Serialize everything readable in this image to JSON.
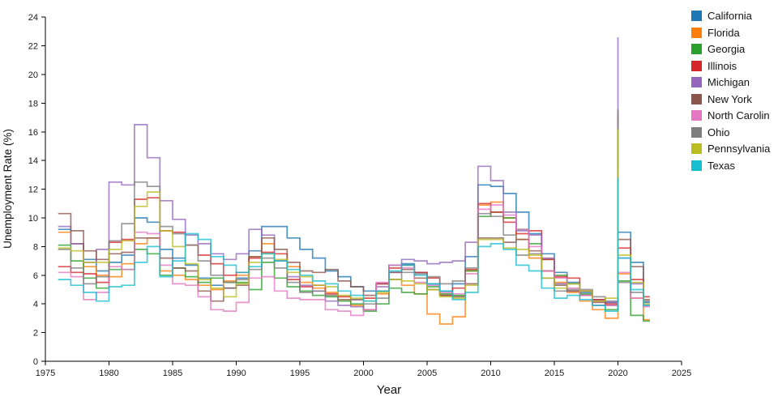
{
  "chart_data": {
    "type": "line",
    "subtype": "step-after-annual",
    "title": "",
    "xlabel": "Year",
    "ylabel": "Unemployment Rate (%)",
    "xlim": [
      1975,
      2025
    ],
    "ylim": [
      0,
      24
    ],
    "xticks": [
      1975,
      1980,
      1985,
      1990,
      1995,
      2000,
      2005,
      2010,
      2015,
      2020,
      2025
    ],
    "yticks": [
      0,
      2,
      4,
      6,
      8,
      10,
      12,
      14,
      16,
      18,
      20,
      22,
      24
    ],
    "grid": false,
    "legend_position": "right",
    "x_start_year": 1976,
    "x_end_year": 2022,
    "note_2020": "narrow intra-year spike at 2020; peak_2020 is the spike top per state",
    "series": [
      {
        "name": "California",
        "legend_label": "California",
        "color": "#1f77b4",
        "peak_2020": 16.2,
        "values": [
          9.2,
          8.2,
          7.1,
          6.3,
          6.9,
          7.4,
          10.0,
          9.7,
          7.8,
          7.2,
          6.7,
          5.8,
          5.3,
          5.1,
          5.8,
          7.7,
          9.4,
          9.4,
          8.6,
          7.8,
          7.2,
          6.3,
          5.9,
          5.2,
          4.9,
          5.4,
          6.7,
          6.8,
          6.2,
          5.4,
          4.9,
          5.4,
          7.3,
          12.3,
          12.2,
          11.7,
          10.4,
          8.9,
          7.5,
          6.2,
          5.5,
          4.8,
          4.3,
          4.1,
          9.0,
          6.9,
          4.1
        ]
      },
      {
        "name": "Florida",
        "legend_label": "Florida",
        "color": "#ff7f0e",
        "peak_2020": 14.2,
        "values": [
          9.0,
          8.2,
          6.6,
          6.0,
          5.9,
          6.8,
          8.2,
          8.6,
          6.3,
          6.0,
          5.7,
          5.3,
          5.0,
          5.6,
          6.0,
          7.3,
          8.2,
          7.0,
          6.6,
          5.5,
          5.1,
          4.8,
          4.3,
          3.9,
          3.6,
          4.7,
          5.7,
          5.3,
          4.7,
          3.3,
          2.6,
          3.1,
          6.3,
          10.9,
          11.1,
          10.0,
          8.5,
          7.2,
          6.3,
          5.5,
          4.8,
          4.2,
          3.6,
          3.0,
          6.1,
          4.4,
          2.9
        ]
      },
      {
        "name": "Georgia",
        "legend_label": "Georgia",
        "color": "#2ca02c",
        "peak_2020": 12.6,
        "values": [
          8.1,
          7.0,
          5.8,
          5.1,
          6.4,
          6.4,
          7.8,
          7.5,
          6.0,
          6.5,
          5.9,
          5.5,
          5.8,
          5.5,
          5.5,
          5.0,
          6.9,
          5.8,
          5.2,
          4.9,
          4.6,
          4.5,
          4.2,
          4.0,
          3.5,
          4.0,
          5.1,
          4.8,
          4.7,
          5.2,
          4.7,
          4.6,
          6.3,
          10.1,
          10.4,
          10.0,
          9.2,
          8.2,
          7.1,
          6.0,
          5.4,
          4.7,
          3.9,
          3.6,
          5.6,
          3.2,
          2.8
        ]
      },
      {
        "name": "Illinois",
        "legend_label": "Illinois",
        "color": "#d62728",
        "peak_2020": 17.4,
        "values": [
          6.6,
          6.2,
          6.1,
          5.5,
          8.3,
          8.5,
          11.3,
          11.4,
          9.1,
          9.0,
          8.1,
          7.4,
          6.8,
          6.0,
          6.2,
          7.2,
          7.6,
          7.5,
          5.7,
          5.2,
          5.3,
          4.7,
          4.5,
          4.3,
          4.4,
          5.4,
          6.5,
          6.7,
          6.2,
          5.8,
          4.6,
          5.1,
          6.4,
          11.0,
          10.4,
          9.7,
          8.9,
          9.1,
          7.1,
          5.9,
          5.8,
          4.9,
          4.3,
          4.0,
          7.9,
          5.7,
          4.5
        ]
      },
      {
        "name": "Michigan",
        "legend_label": "Michigan",
        "color": "#9467bd",
        "peak_2020": 22.6,
        "values": [
          9.4,
          8.2,
          6.9,
          7.8,
          12.5,
          12.3,
          16.5,
          14.2,
          11.2,
          9.9,
          8.8,
          8.2,
          7.5,
          7.1,
          7.5,
          9.2,
          8.8,
          7.0,
          5.9,
          5.3,
          4.9,
          4.2,
          3.9,
          3.8,
          3.6,
          5.2,
          6.2,
          7.1,
          7.0,
          6.8,
          6.9,
          7.0,
          8.3,
          13.6,
          12.6,
          10.4,
          9.1,
          8.8,
          7.2,
          5.4,
          4.9,
          4.6,
          4.2,
          4.1,
          7.2,
          5.4,
          3.9
        ]
      },
      {
        "name": "New York",
        "legend_label": "New York",
        "color": "#8c564b",
        "peak_2020": 16.2,
        "values": [
          10.3,
          9.1,
          7.7,
          7.1,
          7.5,
          7.6,
          8.6,
          8.6,
          7.2,
          6.5,
          6.3,
          4.9,
          4.2,
          5.1,
          5.3,
          7.3,
          8.6,
          7.8,
          6.9,
          6.3,
          6.2,
          6.4,
          5.6,
          5.2,
          4.6,
          4.9,
          6.2,
          6.4,
          5.8,
          5.0,
          4.6,
          4.5,
          5.4,
          8.6,
          8.6,
          8.3,
          8.5,
          7.7,
          6.3,
          5.3,
          4.9,
          4.6,
          4.1,
          3.9,
          8.5,
          6.6,
          4.3
        ]
      },
      {
        "name": "North Carolina",
        "legend_label": "North Carolin",
        "color": "#e377c2",
        "peak_2020": 13.3,
        "values": [
          6.2,
          5.9,
          4.3,
          4.8,
          6.6,
          6.4,
          9.0,
          8.9,
          6.7,
          5.4,
          5.3,
          4.5,
          3.6,
          3.5,
          4.1,
          5.8,
          5.9,
          4.9,
          4.4,
          4.3,
          4.3,
          3.6,
          3.5,
          3.2,
          3.6,
          5.5,
          6.7,
          6.5,
          5.5,
          5.3,
          4.8,
          4.7,
          6.1,
          10.6,
          10.9,
          10.2,
          9.2,
          8.0,
          6.3,
          5.8,
          5.1,
          4.6,
          3.9,
          3.9,
          6.2,
          4.4,
          3.8
        ]
      },
      {
        "name": "Ohio",
        "legend_label": "Ohio",
        "color": "#7f7f7f",
        "peak_2020": 17.6,
        "values": [
          7.8,
          6.5,
          5.4,
          5.9,
          8.4,
          9.6,
          12.5,
          12.2,
          9.4,
          8.9,
          8.1,
          7.0,
          6.0,
          5.5,
          5.7,
          6.4,
          7.2,
          6.5,
          5.5,
          4.8,
          4.9,
          4.6,
          4.3,
          4.3,
          4.0,
          4.4,
          5.7,
          6.2,
          6.1,
          5.9,
          5.4,
          5.6,
          6.5,
          10.3,
          10.1,
          8.8,
          7.4,
          7.5,
          5.8,
          4.9,
          5.0,
          5.0,
          4.5,
          4.2,
          5.5,
          4.8,
          4.2
        ]
      },
      {
        "name": "Pennsylvania",
        "legend_label": "Pennsylvania",
        "color": "#bcbd22",
        "peak_2020": 16.2,
        "values": [
          7.9,
          7.7,
          6.9,
          6.9,
          7.8,
          8.4,
          10.8,
          11.8,
          9.1,
          8.0,
          6.8,
          5.7,
          5.1,
          4.5,
          5.4,
          6.9,
          7.5,
          7.1,
          6.2,
          5.9,
          5.3,
          5.2,
          4.6,
          4.4,
          4.2,
          4.8,
          5.7,
          5.6,
          5.4,
          5.0,
          4.5,
          4.4,
          5.3,
          8.5,
          8.5,
          7.9,
          7.8,
          7.4,
          5.8,
          5.1,
          5.4,
          4.9,
          4.2,
          4.4,
          7.4,
          5.5,
          4.0
        ]
      },
      {
        "name": "Texas",
        "legend_label": "Texas",
        "color": "#17becf",
        "peak_2020": 12.8,
        "values": [
          5.7,
          5.3,
          4.8,
          4.2,
          5.2,
          5.3,
          6.9,
          8.0,
          5.9,
          7.0,
          8.9,
          8.5,
          7.3,
          6.7,
          6.2,
          6.6,
          7.5,
          7.0,
          6.4,
          6.0,
          5.6,
          5.4,
          4.9,
          4.6,
          4.2,
          4.9,
          6.3,
          6.7,
          6.0,
          5.4,
          4.9,
          4.3,
          4.8,
          8.0,
          8.2,
          7.8,
          6.7,
          6.3,
          5.1,
          4.4,
          4.6,
          4.3,
          3.9,
          3.5,
          7.2,
          5.0,
          3.9
        ]
      }
    ]
  },
  "style": {
    "axis_color": "#000000",
    "tick_label_color": "#1b1b1b",
    "line_opacity": 0.78,
    "line_width": 1.7
  }
}
